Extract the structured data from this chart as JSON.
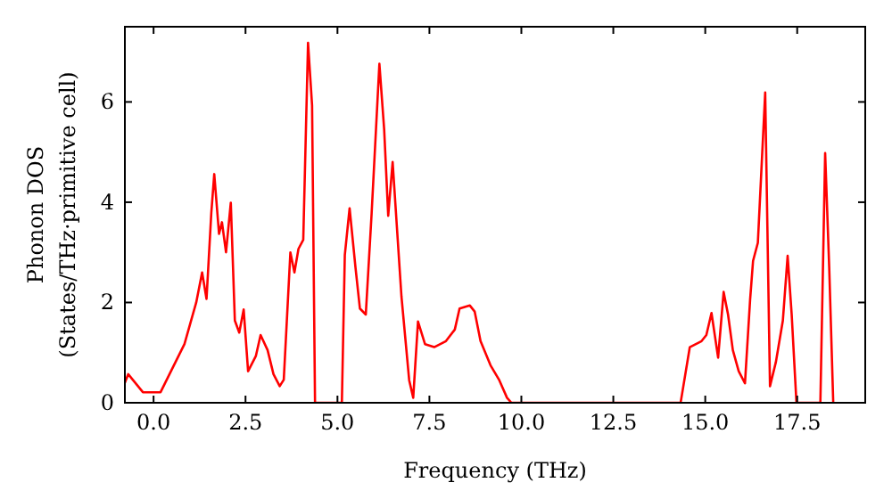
{
  "chart_data": {
    "type": "line",
    "xlabel": "Frequency (THz)",
    "ylabel": "Phonon DOS\n(States/THz·primitive cell)",
    "xlim": [
      -0.78,
      19.35
    ],
    "ylim": [
      0,
      7.5
    ],
    "xticks": [
      {
        "value": 0,
        "label": "0.0"
      },
      {
        "value": 2.5,
        "label": "2.5"
      },
      {
        "value": 5,
        "label": "5.0"
      },
      {
        "value": 7.5,
        "label": "7.5"
      },
      {
        "value": 10,
        "label": "10.0"
      },
      {
        "value": 12.5,
        "label": "12.5"
      },
      {
        "value": 15,
        "label": "15.0"
      },
      {
        "value": 17.5,
        "label": "17.5"
      }
    ],
    "yticks": [
      0,
      2,
      4,
      6
    ],
    "grid": false,
    "marker": "none",
    "line_style": "solid",
    "series": [
      {
        "color": "#ff0000",
        "x": [
          -0.78,
          -0.69,
          -0.29,
          0.19,
          0.84,
          1.16,
          1.32,
          1.44,
          1.57,
          1.65,
          1.78,
          1.86,
          1.97,
          2.1,
          2.21,
          2.33,
          2.45,
          2.57,
          2.78,
          2.91,
          3.1,
          3.26,
          3.43,
          3.54,
          3.72,
          3.83,
          3.94,
          4.07,
          4.2,
          4.31,
          4.39,
          5.12,
          5.2,
          5.33,
          5.49,
          5.61,
          5.77,
          5.93,
          6.14,
          6.27,
          6.38,
          6.5,
          6.74,
          6.95,
          7.06,
          7.19,
          7.38,
          7.63,
          7.95,
          8.19,
          8.32,
          8.6,
          8.73,
          8.89,
          9.16,
          9.4,
          9.61,
          9.73,
          14.33,
          14.58,
          14.9,
          15.03,
          15.17,
          15.35,
          15.5,
          15.62,
          15.75,
          15.91,
          16.08,
          16.22,
          16.3,
          16.43,
          16.63,
          16.76,
          16.92,
          17.11,
          17.24,
          17.35,
          17.48,
          18.13,
          18.26,
          18.37,
          18.48
        ],
        "values": [
          0.4,
          0.57,
          0.21,
          0.21,
          1.17,
          2.0,
          2.6,
          2.07,
          3.79,
          4.56,
          3.37,
          3.6,
          3.0,
          3.99,
          1.64,
          1.4,
          1.86,
          0.63,
          0.93,
          1.35,
          1.05,
          0.57,
          0.33,
          0.46,
          3.0,
          2.6,
          3.07,
          3.25,
          7.18,
          5.93,
          0,
          0,
          2.95,
          3.88,
          2.7,
          1.88,
          1.76,
          3.79,
          6.76,
          5.45,
          3.73,
          4.8,
          2.12,
          0.45,
          0.1,
          1.62,
          1.17,
          1.11,
          1.23,
          1.46,
          1.88,
          1.94,
          1.82,
          1.23,
          0.75,
          0.45,
          0.1,
          0,
          0,
          1.11,
          1.23,
          1.35,
          1.79,
          0.9,
          2.21,
          1.76,
          1.05,
          0.63,
          0.39,
          2.06,
          2.83,
          3.19,
          6.19,
          0.33,
          0.81,
          1.64,
          2.93,
          1.76,
          0,
          0,
          4.98,
          2.71,
          0
        ]
      }
    ]
  }
}
